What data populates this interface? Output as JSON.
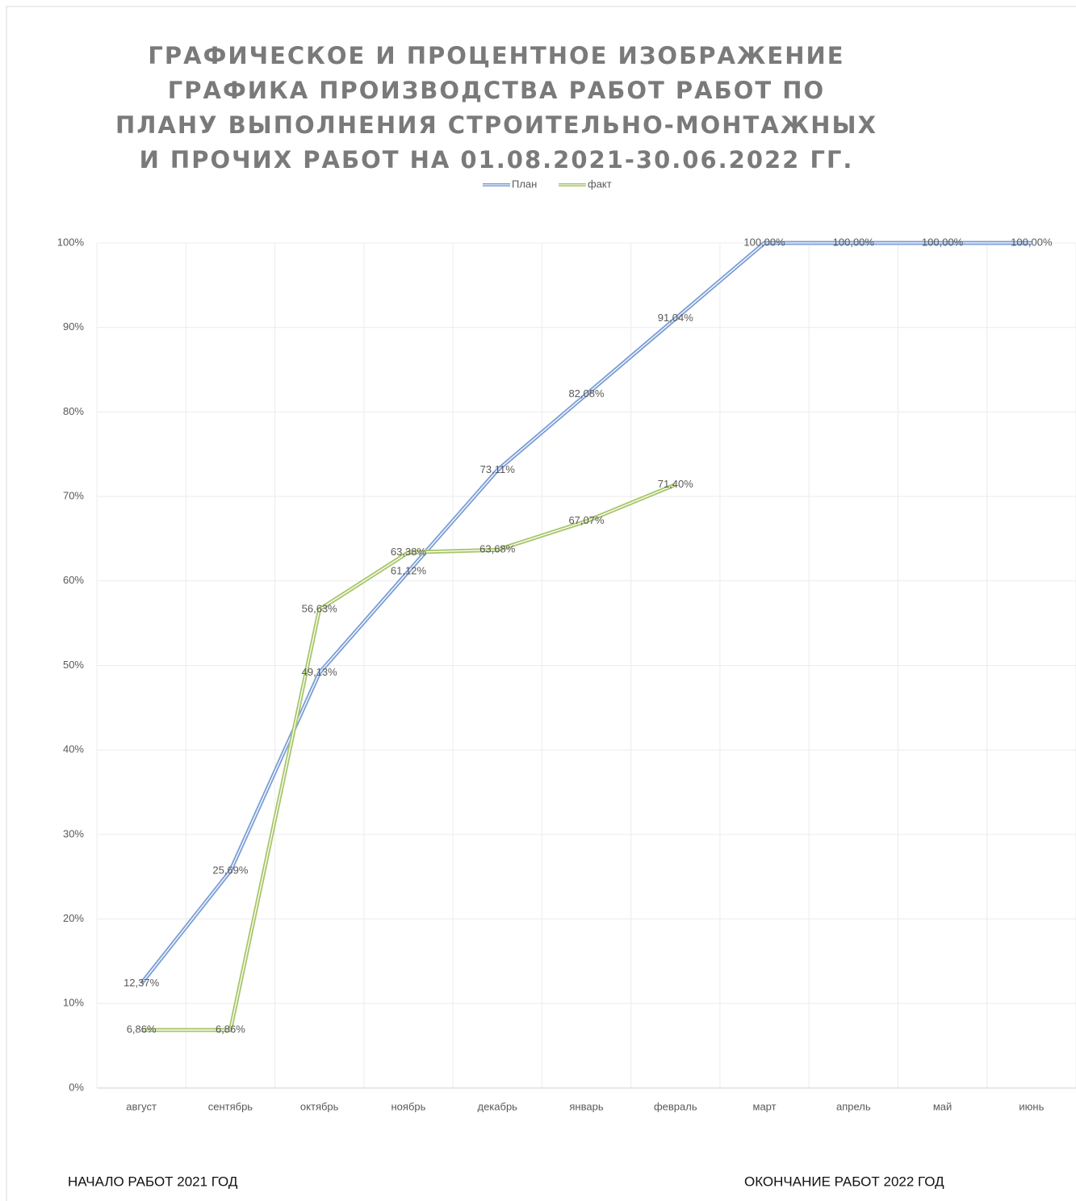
{
  "chart_data": {
    "type": "line",
    "title": "ГРАФИЧЕСКОЕ И ПРОЦЕНТНОЕ ИЗОБРАЖЕНИЕ ГРАФИКА ПРОИЗВОДСТВА РАБОТ РАБОТ ПО ПЛАНУ ВЫПОЛНЕНИЯ СТРОИТЕЛЬНО-МОНТАЖНЫХ И ПРОЧИХ РАБОТ НА 01.08.2021-30.06.2022 ГГ.",
    "categories": [
      "август",
      "сентябрь",
      "октябрь",
      "ноябрь",
      "декабрь",
      "январь",
      "февраль",
      "март",
      "апрель",
      "май",
      "июнь"
    ],
    "series": [
      {
        "name": "План",
        "color": "#7c9fd6",
        "values": [
          12.37,
          25.69,
          49.13,
          61.12,
          73.11,
          82.08,
          91.04,
          100,
          100,
          100,
          100
        ],
        "value_labels": [
          "12,37%",
          "25,69%",
          "49,13%",
          "61,12%",
          "73,11%",
          "82,08%",
          "91,04%",
          "100,00%",
          "100,00%",
          "100,00%",
          "100,00%"
        ]
      },
      {
        "name": "факт",
        "color": "#a9c66b",
        "values": [
          6.86,
          6.86,
          56.63,
          63.38,
          63.68,
          67.07,
          71.4,
          null,
          null,
          null,
          null
        ],
        "value_labels": [
          "6,86%",
          "6,86%",
          "56,63%",
          "63,38%",
          "63,68%",
          "67,07%",
          "71,40%",
          null,
          null,
          null,
          null
        ]
      }
    ],
    "ylim": [
      0,
      100
    ],
    "yticks": [
      {
        "value": 0,
        "label": "0%"
      },
      {
        "value": 10,
        "label": "10%"
      },
      {
        "value": 20,
        "label": "20%"
      },
      {
        "value": 30,
        "label": "30%"
      },
      {
        "value": 40,
        "label": "40%"
      },
      {
        "value": 50,
        "label": "50%"
      },
      {
        "value": 60,
        "label": "60%"
      },
      {
        "value": 70,
        "label": "70%"
      },
      {
        "value": 80,
        "label": "80%"
      },
      {
        "value": 90,
        "label": "90%"
      },
      {
        "value": 100,
        "label": "100%"
      }
    ],
    "grid": true,
    "legend": "top",
    "annotations": [
      "НАЧАЛО РАБОТ 2021 ГОД",
      "ОКОНЧАНИЕ РАБОТ 2022 ГОД"
    ]
  }
}
